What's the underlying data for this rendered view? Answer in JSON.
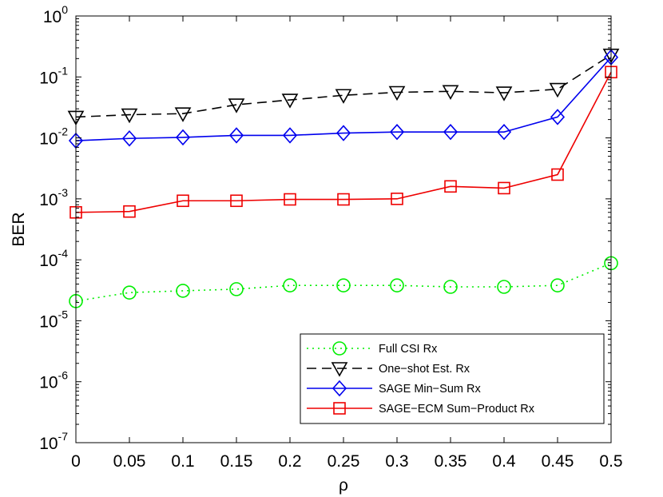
{
  "chart_data": {
    "type": "line",
    "xlabel": "ρ",
    "ylabel": "BER",
    "y_scale": "log",
    "xlim": [
      0,
      0.5
    ],
    "ylim": [
      1e-07,
      1
    ],
    "x_ticks": [
      "0",
      "0.05",
      "0.1",
      "0.15",
      "0.2",
      "0.25",
      "0.3",
      "0.35",
      "0.4",
      "0.45",
      "0.5"
    ],
    "y_ticks": [
      {
        "base": "10",
        "exp": "-7"
      },
      {
        "base": "10",
        "exp": "-6"
      },
      {
        "base": "10",
        "exp": "-5"
      },
      {
        "base": "10",
        "exp": "-4"
      },
      {
        "base": "10",
        "exp": "-3"
      },
      {
        "base": "10",
        "exp": "-2"
      },
      {
        "base": "10",
        "exp": "-1"
      },
      {
        "base": "10",
        "exp": "0"
      }
    ],
    "grid": false,
    "legend_position": "bottom-right",
    "x": [
      0,
      0.05,
      0.1,
      0.15,
      0.2,
      0.25,
      0.3,
      0.35,
      0.4,
      0.45,
      0.5
    ],
    "series": [
      {
        "name": "Full CSI Rx",
        "color": "#00ee00",
        "line_style": "dotted",
        "marker": "circle",
        "values": [
          2.1e-05,
          2.9e-05,
          3.1e-05,
          3.3e-05,
          3.8e-05,
          3.8e-05,
          3.8e-05,
          3.6e-05,
          3.6e-05,
          3.8e-05,
          8.8e-05
        ]
      },
      {
        "name": "One−shot Est. Rx",
        "color": "#000000",
        "line_style": "dashed",
        "marker": "triangle-down",
        "values": [
          0.022,
          0.024,
          0.025,
          0.035,
          0.042,
          0.05,
          0.056,
          0.058,
          0.055,
          0.063,
          0.23
        ]
      },
      {
        "name": "SAGE Min−Sum Rx",
        "color": "#0000ee",
        "line_style": "solid",
        "marker": "diamond",
        "values": [
          0.009,
          0.0098,
          0.0102,
          0.011,
          0.011,
          0.012,
          0.0125,
          0.0125,
          0.0125,
          0.022,
          0.21
        ]
      },
      {
        "name": "SAGE−ECM Sum−Product Rx",
        "color": "#ee0000",
        "line_style": "solid",
        "marker": "square",
        "values": [
          0.0006,
          0.00062,
          0.00093,
          0.00093,
          0.00098,
          0.00098,
          0.001,
          0.0016,
          0.0015,
          0.0025,
          0.12
        ]
      }
    ]
  }
}
